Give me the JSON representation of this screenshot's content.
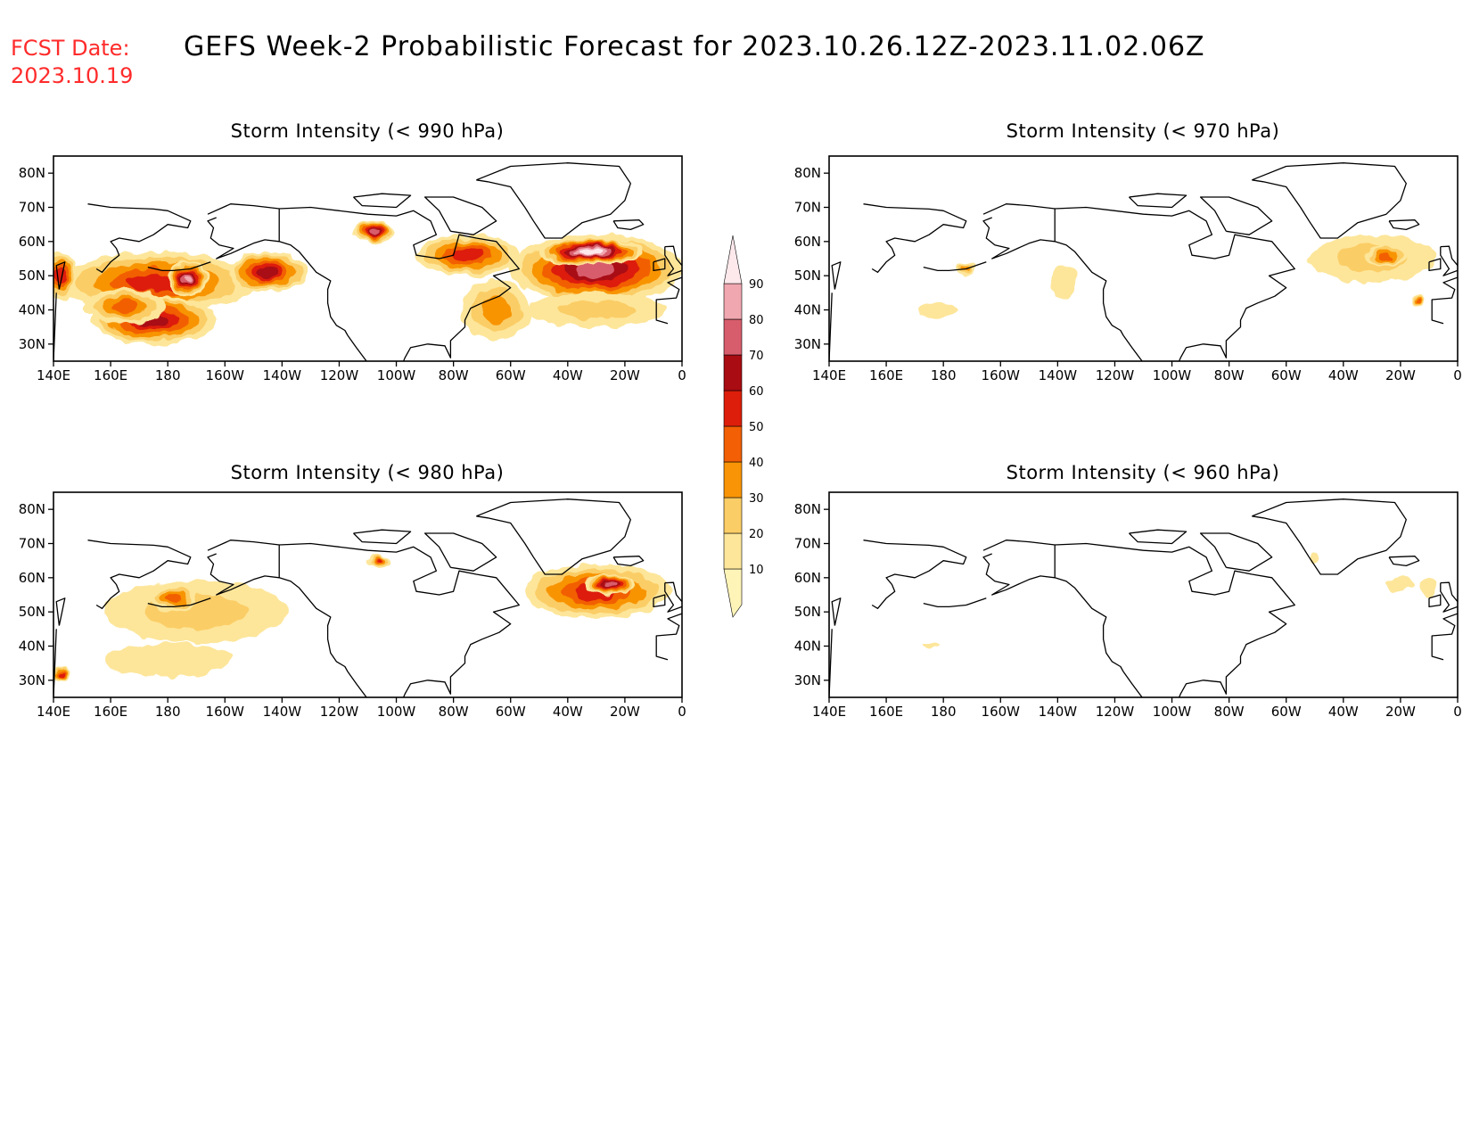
{
  "fcst": {
    "label": "FCST Date:",
    "date": "2023.10.19"
  },
  "title": "GEFS Week-2 Probabilistic Forecast for 2023.10.26.12Z-2023.11.02.06Z",
  "x_ticks": [
    "140E",
    "160E",
    "180",
    "160W",
    "140W",
    "120W",
    "100W",
    "80W",
    "60W",
    "40W",
    "20W",
    "0"
  ],
  "y_ticks": [
    "80N",
    "70N",
    "60N",
    "50N",
    "40N",
    "30N"
  ],
  "colorbar": {
    "levels": [
      10,
      20,
      30,
      40,
      50,
      60,
      70,
      80,
      90
    ],
    "labels": [
      "10",
      "20",
      "30",
      "40",
      "50",
      "60",
      "70",
      "80",
      "90"
    ],
    "colors": [
      "#fff4b8",
      "#fde69a",
      "#fbcd66",
      "#f89406",
      "#f25f04",
      "#dd1e0a",
      "#a90c12",
      "#d85d6c",
      "#f0a7b0",
      "#fde8ec"
    ]
  },
  "panels": [
    {
      "id": "p990",
      "title": "Storm Intensity (< 990 hPa)",
      "blobs": [
        {
          "lon": 176,
          "lat": 48,
          "rlon": 34,
          "rlat": 9,
          "p": 58
        },
        {
          "lon": -145,
          "lat": 51,
          "rlon": 14,
          "rlat": 6,
          "p": 66
        },
        {
          "lon": -173,
          "lat": 49,
          "rlon": 7,
          "rlat": 5,
          "p": 84
        },
        {
          "lon": 175,
          "lat": 37,
          "rlon": 22,
          "rlat": 7,
          "p": 62
        },
        {
          "lon": 165,
          "lat": 41,
          "rlon": 14,
          "rlat": 5,
          "p": 44
        },
        {
          "lon": 142,
          "lat": 50,
          "rlon": 6,
          "rlat": 7,
          "p": 52
        },
        {
          "lon": -108,
          "lat": 63,
          "rlon": 7,
          "rlat": 3,
          "p": 72
        },
        {
          "lon": -75,
          "lat": 56,
          "rlon": 18,
          "rlat": 6,
          "p": 50
        },
        {
          "lon": -30,
          "lat": 52,
          "rlon": 30,
          "rlat": 10,
          "p": 74
        },
        {
          "lon": -32,
          "lat": 57,
          "rlon": 18,
          "rlat": 4,
          "p": 93
        },
        {
          "lon": -65,
          "lat": 40,
          "rlon": 12,
          "rlat": 9,
          "p": 34
        },
        {
          "lon": -30,
          "lat": 40,
          "rlon": 24,
          "rlat": 5,
          "p": 28
        }
      ]
    },
    {
      "id": "p970",
      "title": "Storm Intensity (< 970 hPa)",
      "blobs": [
        {
          "lon": -30,
          "lat": 55,
          "rlon": 22,
          "rlat": 7,
          "p": 26
        },
        {
          "lon": -25,
          "lat": 56,
          "rlon": 7,
          "rlat": 3,
          "p": 42
        },
        {
          "lon": -172,
          "lat": 52,
          "rlon": 3,
          "rlat": 2,
          "p": 32
        },
        {
          "lon": -138,
          "lat": 48,
          "rlon": 5,
          "rlat": 5,
          "p": 18
        },
        {
          "lon": 178,
          "lat": 40,
          "rlon": 7,
          "rlat": 2,
          "p": 14
        },
        {
          "lon": -14,
          "lat": 43,
          "rlon": 2,
          "rlat": 2,
          "p": 45
        }
      ]
    },
    {
      "id": "p980",
      "title": "Storm Intensity (< 980 hPa)",
      "blobs": [
        {
          "lon": -170,
          "lat": 50,
          "rlon": 32,
          "rlat": 9,
          "p": 22
        },
        {
          "lon": -178,
          "lat": 54,
          "rlon": 8,
          "rlat": 4,
          "p": 40
        },
        {
          "lon": 180,
          "lat": 36,
          "rlon": 22,
          "rlat": 5,
          "p": 14
        },
        {
          "lon": -106,
          "lat": 65,
          "rlon": 4,
          "rlat": 2,
          "p": 52
        },
        {
          "lon": -30,
          "lat": 56,
          "rlon": 26,
          "rlat": 8,
          "p": 58
        },
        {
          "lon": -25,
          "lat": 58,
          "rlon": 9,
          "rlat": 3,
          "p": 72
        },
        {
          "lon": 142,
          "lat": 32,
          "rlon": 3,
          "rlat": 2,
          "p": 55
        }
      ]
    },
    {
      "id": "p960",
      "title": "Storm Intensity (< 960 hPa)",
      "blobs": [
        {
          "lon": -20,
          "lat": 58,
          "rlon": 5,
          "rlat": 2,
          "p": 18
        },
        {
          "lon": -10,
          "lat": 57,
          "rlon": 3,
          "rlat": 3,
          "p": 14
        },
        {
          "lon": 176,
          "lat": 40,
          "rlon": 3,
          "rlat": 1,
          "p": 12
        },
        {
          "lon": -50,
          "lat": 66,
          "rlon": 2,
          "rlat": 2,
          "p": 12
        }
      ]
    }
  ]
}
